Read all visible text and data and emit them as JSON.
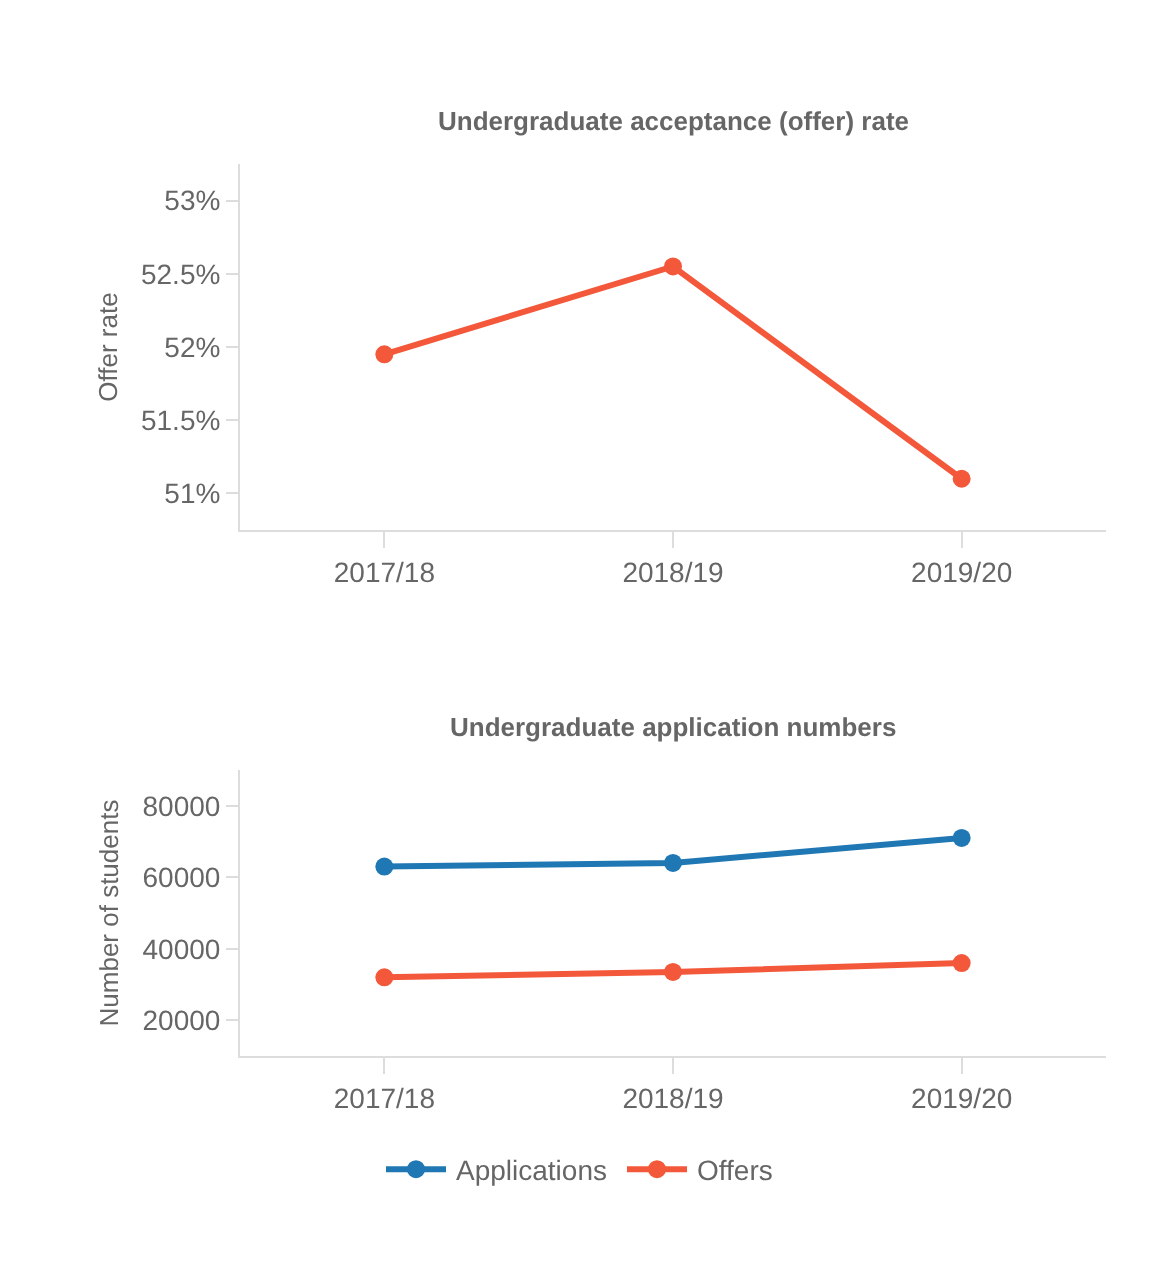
{
  "chart_data": [
    {
      "type": "line",
      "title": "Undergraduate acceptance (offer) rate",
      "ylabel": "Offer rate",
      "categories": [
        "2017/18",
        "2018/19",
        "2019/20"
      ],
      "series": [
        {
          "color": "#f4583a",
          "values": [
            51.95,
            52.55,
            51.1
          ]
        }
      ],
      "ylim": [
        50.75,
        53.25
      ],
      "yticks": [
        {
          "value": 51,
          "label": "51%"
        },
        {
          "value": 51.5,
          "label": "51.5%"
        },
        {
          "value": 52,
          "label": "52%"
        },
        {
          "value": 52.5,
          "label": "52.5%"
        },
        {
          "value": 53,
          "label": "53%"
        }
      ],
      "marker": "circle",
      "grid": false,
      "legend": false
    },
    {
      "type": "line",
      "title": "Undergraduate application numbers",
      "ylabel": "Number of students",
      "categories": [
        "2017/18",
        "2018/19",
        "2019/20"
      ],
      "series": [
        {
          "name": "Applications",
          "color": "#1f77b4",
          "values": [
            63000,
            64000,
            71000
          ]
        },
        {
          "name": "Offers",
          "color": "#f4583a",
          "values": [
            32000,
            33500,
            36000
          ]
        }
      ],
      "ylim": [
        10000,
        90000
      ],
      "yticks": [
        20000,
        40000,
        60000,
        80000
      ],
      "marker": "circle",
      "grid": false,
      "legend": "bottom"
    }
  ]
}
